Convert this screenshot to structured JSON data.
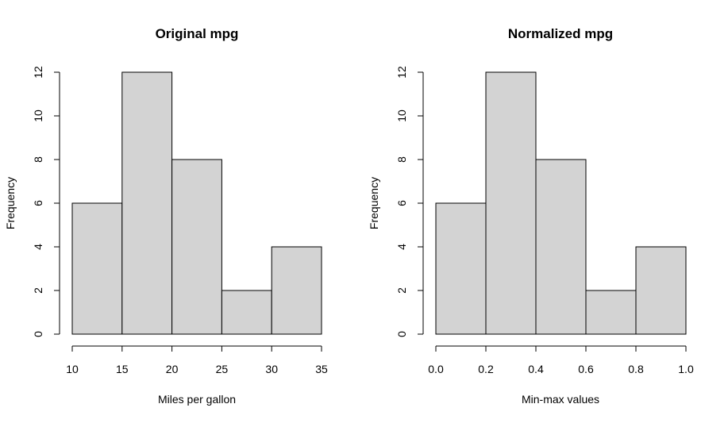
{
  "chart_data": [
    {
      "type": "bar",
      "title": "Original mpg",
      "xlabel": "Miles per gallon",
      "ylabel": "Frequency",
      "bins": [
        [
          10,
          15
        ],
        [
          15,
          20
        ],
        [
          20,
          25
        ],
        [
          25,
          30
        ],
        [
          30,
          35
        ]
      ],
      "values": [
        6,
        12,
        8,
        2,
        4
      ],
      "xlim": [
        10,
        35
      ],
      "ylim": [
        0,
        12
      ],
      "x_ticks": [
        10,
        15,
        20,
        25,
        30,
        35
      ],
      "x_tick_labels": [
        "10",
        "15",
        "20",
        "25",
        "30",
        "35"
      ],
      "y_ticks": [
        0,
        2,
        4,
        6,
        8,
        10,
        12
      ],
      "y_tick_labels": [
        "0",
        "2",
        "4",
        "6",
        "8",
        "10",
        "12"
      ],
      "bar_color": "#d3d3d3",
      "grid": false
    },
    {
      "type": "bar",
      "title": "Normalized mpg",
      "xlabel": "Min-max values",
      "ylabel": "Frequency",
      "bins": [
        [
          0.0,
          0.2
        ],
        [
          0.2,
          0.4
        ],
        [
          0.4,
          0.6
        ],
        [
          0.6,
          0.8
        ],
        [
          0.8,
          1.0
        ]
      ],
      "values": [
        6,
        12,
        8,
        2,
        4
      ],
      "xlim": [
        0.0,
        1.0
      ],
      "ylim": [
        0,
        12
      ],
      "x_ticks": [
        0.0,
        0.2,
        0.4,
        0.6,
        0.8,
        1.0
      ],
      "x_tick_labels": [
        "0.0",
        "0.2",
        "0.4",
        "0.6",
        "0.8",
        "1.0"
      ],
      "y_ticks": [
        0,
        2,
        4,
        6,
        8,
        10,
        12
      ],
      "y_tick_labels": [
        "0",
        "2",
        "4",
        "6",
        "8",
        "10",
        "12"
      ],
      "bar_color": "#d3d3d3",
      "grid": false
    }
  ]
}
